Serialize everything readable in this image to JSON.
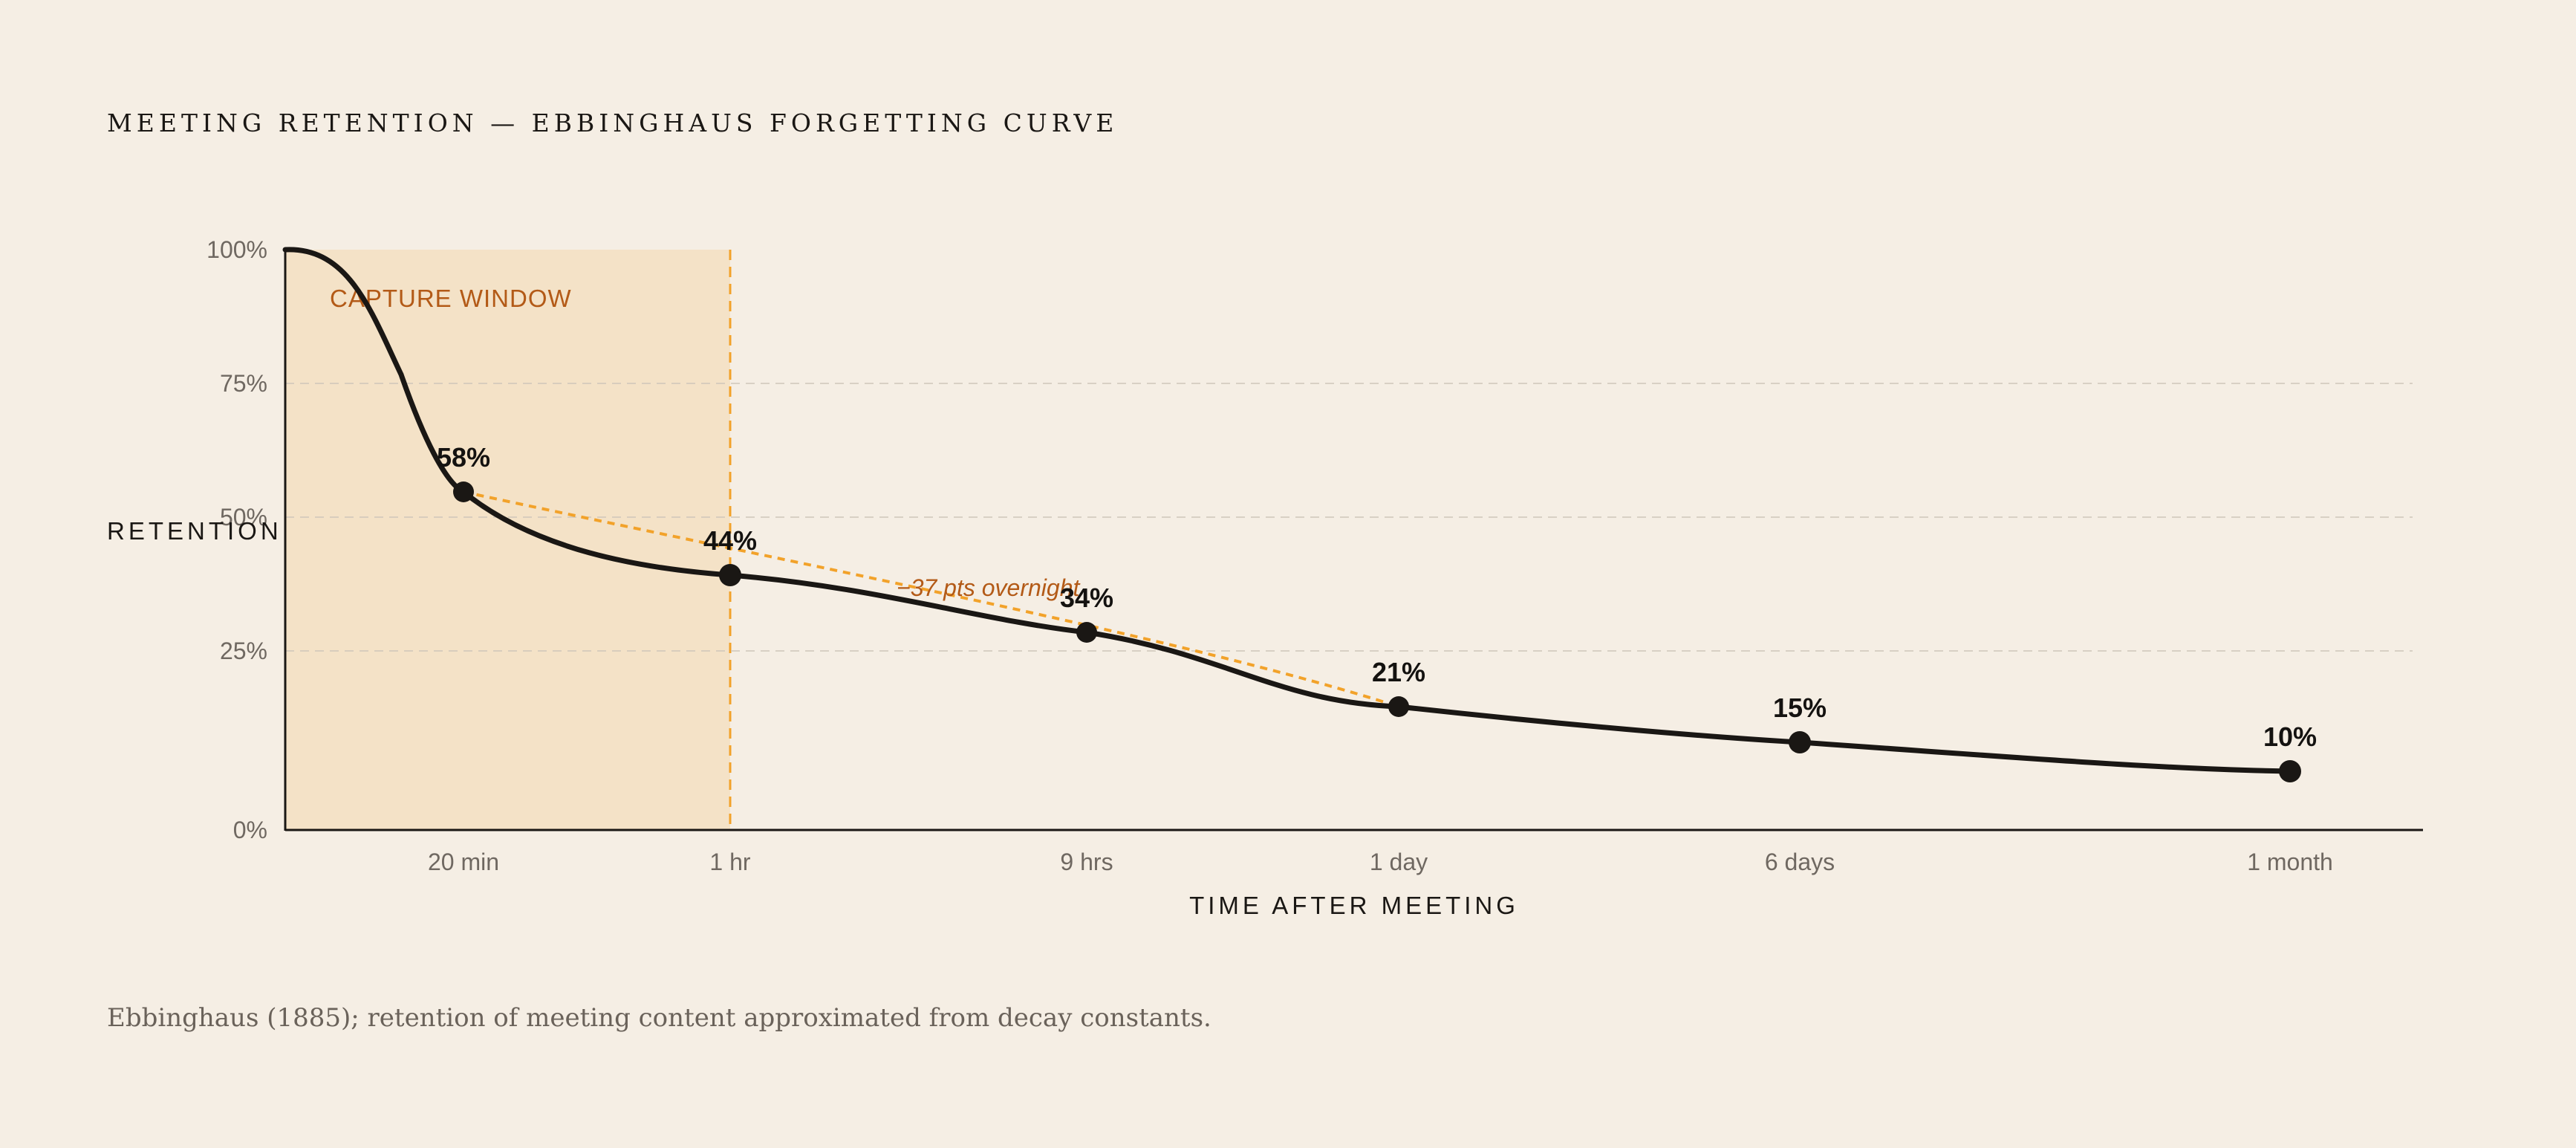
{
  "title": "MEETING RETENTION — EBBINGHAUS FORGETTING CURVE",
  "caption": "Ebbinghaus (1885); retention of meeting content approximated from decay constants.",
  "chart_data": {
    "type": "line",
    "xlabel": "TIME AFTER MEETING",
    "ylabel": "RETENTION",
    "ylim": [
      0,
      100
    ],
    "y_ticks": [
      "0%",
      "25%",
      "50%",
      "75%",
      "100%"
    ],
    "grid": "horizontal dashed at 25%, 50%, 75%",
    "x_categories": [
      "20 min",
      "1 hr",
      "9 hrs",
      "1 day",
      "6 days",
      "1 month"
    ],
    "series": [
      {
        "points": [
          {
            "x": "0",
            "y": 100
          },
          {
            "x": "20 min",
            "y": 58,
            "label": "58%"
          },
          {
            "x": "1 hr",
            "y": 44,
            "label": "44%"
          },
          {
            "x": "9 hrs",
            "y": 34,
            "label": "34%"
          },
          {
            "x": "1 day",
            "y": 21,
            "label": "21%"
          },
          {
            "x": "6 days",
            "y": 15,
            "label": "15%"
          },
          {
            "x": "1 month",
            "y": 10,
            "label": "10%"
          }
        ]
      }
    ],
    "shaded_region": {
      "label": "CAPTURE WINDOW",
      "from": "0",
      "to": "1 hr"
    },
    "annotation": {
      "text": "−37 pts overnight",
      "from": "20 min",
      "to": "1 day"
    },
    "colors": {
      "curve": "#1a1714",
      "accent": "#f2a22a",
      "window_fill": "#f4e2c7",
      "accent_text": "#b35a17"
    }
  }
}
